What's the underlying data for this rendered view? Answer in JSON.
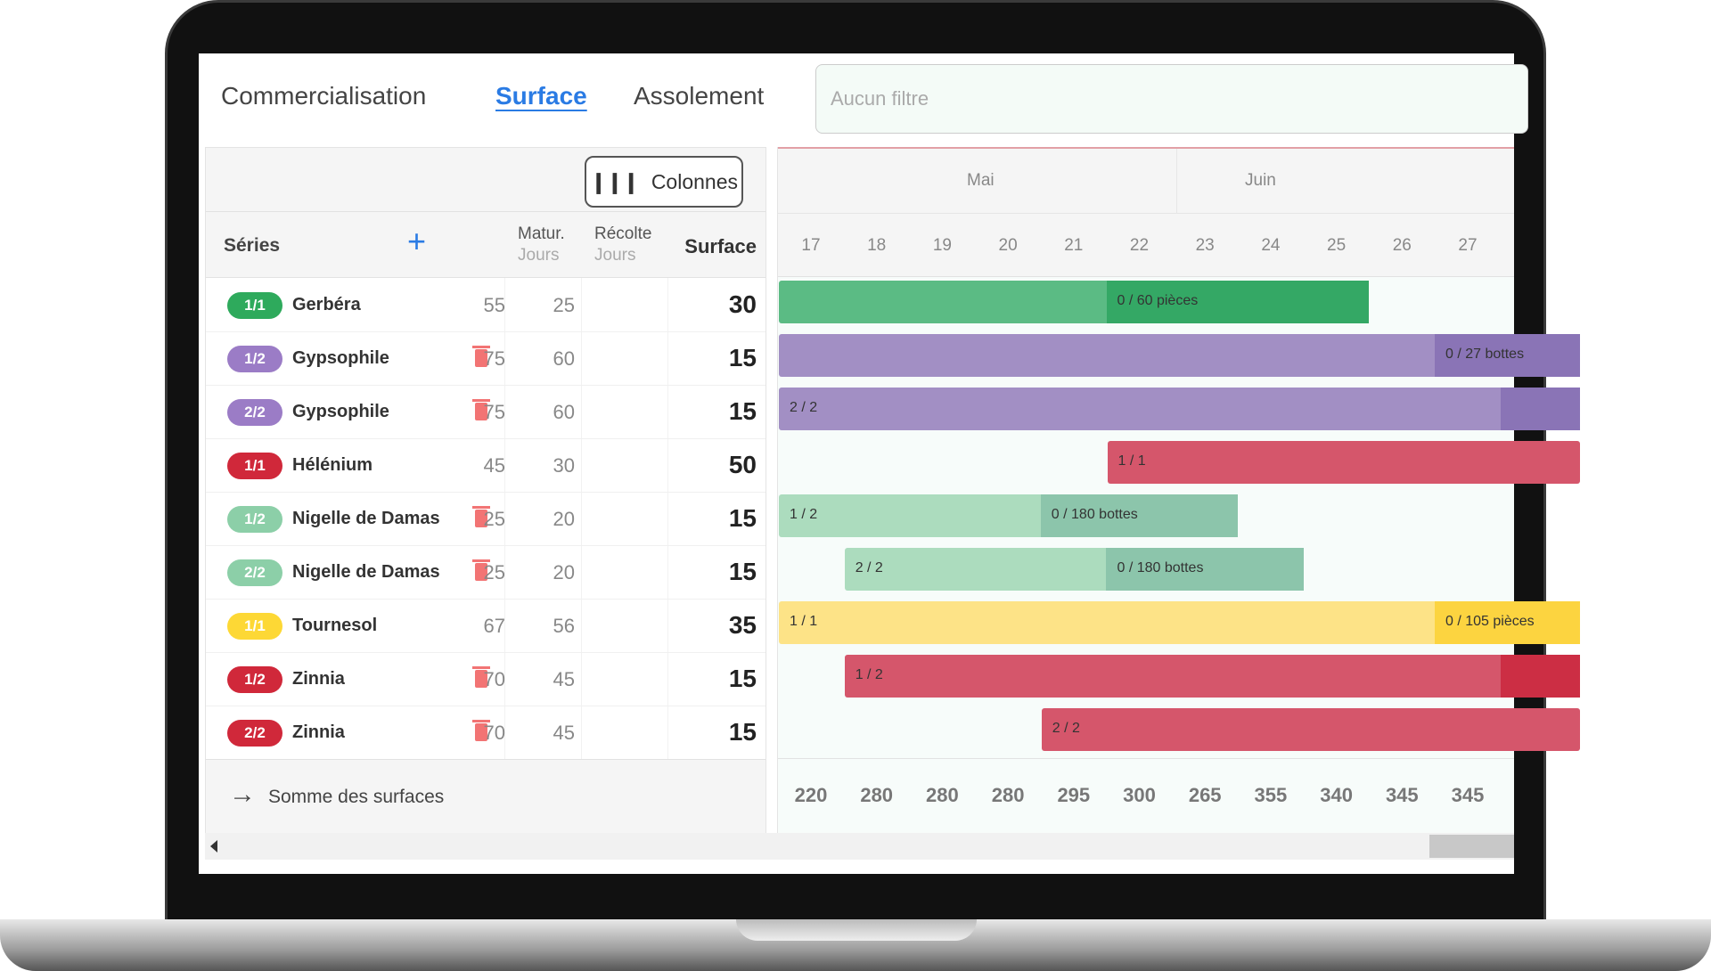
{
  "tabs": [
    {
      "label": "Commercialisation",
      "active": false
    },
    {
      "label": "Surface",
      "active": true
    },
    {
      "label": "Assolement",
      "active": false
    }
  ],
  "filter": {
    "placeholder": "Aucun filtre"
  },
  "toolbar": {
    "columns_label": "Colonnes",
    "columns_icon": "columns-icon"
  },
  "table": {
    "headers": {
      "series": "Séries",
      "add_icon": "plus-icon",
      "matur": "Matur.",
      "matur_unit": "Jours",
      "recolte": "Récolte",
      "recolte_unit": "Jours",
      "surface": "Surface"
    },
    "rows": [
      {
        "badge": "1/1",
        "name": "Gerbéra",
        "color": "#2eaa5c",
        "trash": false,
        "matur": "55",
        "recolte": "25",
        "surface": "30"
      },
      {
        "badge": "1/2",
        "name": "Gypsophile",
        "color": "#9b7cc6",
        "trash": true,
        "matur": "75",
        "recolte": "60",
        "surface": "15"
      },
      {
        "badge": "2/2",
        "name": "Gypsophile",
        "color": "#9b7cc6",
        "trash": true,
        "matur": "75",
        "recolte": "60",
        "surface": "15"
      },
      {
        "badge": "1/1",
        "name": "Hélénium",
        "color": "#d0283a",
        "trash": false,
        "matur": "45",
        "recolte": "30",
        "surface": "50"
      },
      {
        "badge": "1/2",
        "name": "Nigelle de Damas",
        "color": "#8ccfa8",
        "trash": true,
        "matur": "25",
        "recolte": "20",
        "surface": "15"
      },
      {
        "badge": "2/2",
        "name": "Nigelle de Damas",
        "color": "#8ccfa8",
        "trash": true,
        "matur": "25",
        "recolte": "20",
        "surface": "15"
      },
      {
        "badge": "1/1",
        "name": "Tournesol",
        "color": "#fdd835",
        "trash": false,
        "matur": "67",
        "recolte": "56",
        "surface": "35"
      },
      {
        "badge": "1/2",
        "name": "Zinnia",
        "color": "#d0283a",
        "trash": true,
        "matur": "70",
        "recolte": "45",
        "surface": "15"
      },
      {
        "badge": "2/2",
        "name": "Zinnia",
        "color": "#d0283a",
        "trash": true,
        "matur": "70",
        "recolte": "45",
        "surface": "15"
      }
    ],
    "footer_label": "Somme des surfaces"
  },
  "gantt": {
    "months": [
      "Mai",
      "Juin"
    ],
    "weeks": [
      "17",
      "18",
      "19",
      "20",
      "21",
      "22",
      "23",
      "24",
      "25",
      "26",
      "27"
    ],
    "totals": [
      "220",
      "280",
      "280",
      "280",
      "295",
      "300",
      "265",
      "355",
      "340",
      "345",
      "345"
    ],
    "bars": [
      {
        "start": 17,
        "harvest": 22,
        "end": 26,
        "label": "",
        "harvest_label": "0 / 60 pièces",
        "light": "#5bbb84",
        "dark": "#34a865"
      },
      {
        "start": 17,
        "harvest": 27,
        "end": null,
        "label": "",
        "harvest_label": "0 / 27 bottes",
        "light": "#a28fc4",
        "dark": "#8a74b6"
      },
      {
        "start": 17,
        "harvest": 28,
        "end": null,
        "label": "2 / 2",
        "harvest_label": "",
        "light": "#a28fc4",
        "dark": "#8a74b6"
      },
      {
        "start": 22,
        "harvest": null,
        "end": null,
        "label": "1 / 1",
        "harvest_label": "",
        "light": "#d5566b",
        "dark": "#cc2e44"
      },
      {
        "start": 17,
        "harvest": 21,
        "end": 24,
        "label": "1 / 2",
        "harvest_label": "0 / 180 bottes",
        "light": "#acdcbe",
        "dark": "#8cc5ab"
      },
      {
        "start": 18,
        "harvest": 22,
        "end": 25,
        "label": "2 / 2",
        "harvest_label": "0 / 180 bottes",
        "light": "#acdcbe",
        "dark": "#8cc5ab"
      },
      {
        "start": 17,
        "harvest": 27,
        "end": null,
        "label": "1 / 1",
        "harvest_label": "0 / 105 pièces",
        "light": "#fde387",
        "dark": "#fcd440"
      },
      {
        "start": 18,
        "harvest": 28,
        "end": null,
        "label": "1 / 2",
        "harvest_label": "",
        "light": "#d5566b",
        "dark": "#cc2e44"
      },
      {
        "start": 21,
        "harvest": null,
        "end": null,
        "label": "2 / 2",
        "harvest_label": "",
        "light": "#d5566b",
        "dark": "#cc2e44"
      }
    ]
  }
}
